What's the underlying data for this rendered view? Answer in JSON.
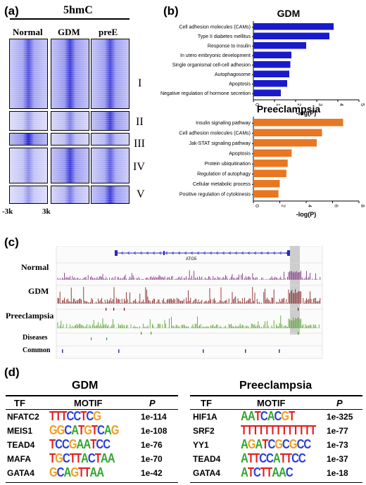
{
  "panel_a": {
    "label": "(a)",
    "title": "5hmC",
    "columns": [
      "Normal",
      "GDM",
      "preE"
    ],
    "clusters": [
      "I",
      "II",
      "III",
      "IV",
      "V"
    ],
    "axis_left": "-3k",
    "axis_right": "3k"
  },
  "panel_b": {
    "label": "(b)",
    "chart_data": [
      {
        "type": "bar",
        "title": "GDM",
        "xlabel": "-log(P)",
        "xlim": [
          0,
          5
        ],
        "ticks": [
          "0",
          "1",
          "2",
          "3",
          "4",
          "5"
        ],
        "color": "#1a1acc",
        "categories": [
          "Cell adhesion molecules (CAMs)",
          "Type II diabetes mellitus",
          "Response to insulin",
          "In utero embryonic development",
          "Single organismal cell-cell adhesion",
          "Autophagosome",
          "Apoptosis",
          "Negative regulation of hormone secretion"
        ],
        "values": [
          3.8,
          3.6,
          2.5,
          1.8,
          1.75,
          1.7,
          1.6,
          1.3
        ]
      },
      {
        "type": "bar",
        "title": "Preeclampsia",
        "xlabel": "-log(P)",
        "xlim": [
          0,
          8
        ],
        "ticks": [
          "0",
          "2",
          "4",
          "6",
          "8"
        ],
        "color": "#e87722",
        "categories": [
          "Insulin signaling pathway",
          "Cell adhesion molecules (CAMs)",
          "Jak-STAT signaling pathway",
          "Apoptosis",
          "Protein ubiquitination",
          "Regulation of autophagy",
          "Cellular metabolic process",
          "Positive regulation of cytokinesis"
        ],
        "values": [
          6.8,
          5.2,
          4.8,
          2.9,
          2.6,
          2.5,
          2.0,
          1.9
        ]
      }
    ]
  },
  "panel_c": {
    "label": "(c)",
    "gene": "ATG5",
    "tracks": [
      "Normal",
      "GDM",
      "Preeclampsia",
      "Diseases",
      "Common"
    ],
    "colors": {
      "Normal": "#7a1f7a",
      "GDM": "#7a1010",
      "Preeclampsia": "#4a9a20",
      "Diseases": "#2a9a8a",
      "Common": "#2a3aaa"
    }
  },
  "panel_d": {
    "label": "(d)",
    "gdm": {
      "title": "GDM",
      "headers": [
        "TF",
        "MOTIF",
        "P"
      ],
      "rows": [
        {
          "tf": "NFATC2",
          "motif": "TTTCCTCG",
          "p": "1e-114"
        },
        {
          "tf": "MEIS1",
          "motif": "GGCATGTCAG",
          "p": "1e-108"
        },
        {
          "tf": "TEAD4",
          "motif": "TCCGAATCC",
          "p": "1e-76"
        },
        {
          "tf": "MAFA",
          "motif": "TGCTTACTAA",
          "p": "1e-70"
        },
        {
          "tf": "GATA4",
          "motif": "GCAGTTAA",
          "p": "1e-42"
        }
      ]
    },
    "pre": {
      "title": "Preeclampsia",
      "headers": [
        "TF",
        "MOTIF",
        "P"
      ],
      "rows": [
        {
          "tf": "HIF1A",
          "motif": "AATCACGT",
          "p": "1e-325"
        },
        {
          "tf": "SRF2",
          "motif": "TTTTTTTTTTTTT",
          "p": "1e-77"
        },
        {
          "tf": "YY1",
          "motif": "AGATCGCGCC",
          "p": "1e-73"
        },
        {
          "tf": "TEAD4",
          "motif": "ATTCCATTCC",
          "p": "1e-37"
        },
        {
          "tf": "GATA4",
          "motif": "ATCTTAAC",
          "p": "1e-18"
        }
      ]
    }
  }
}
